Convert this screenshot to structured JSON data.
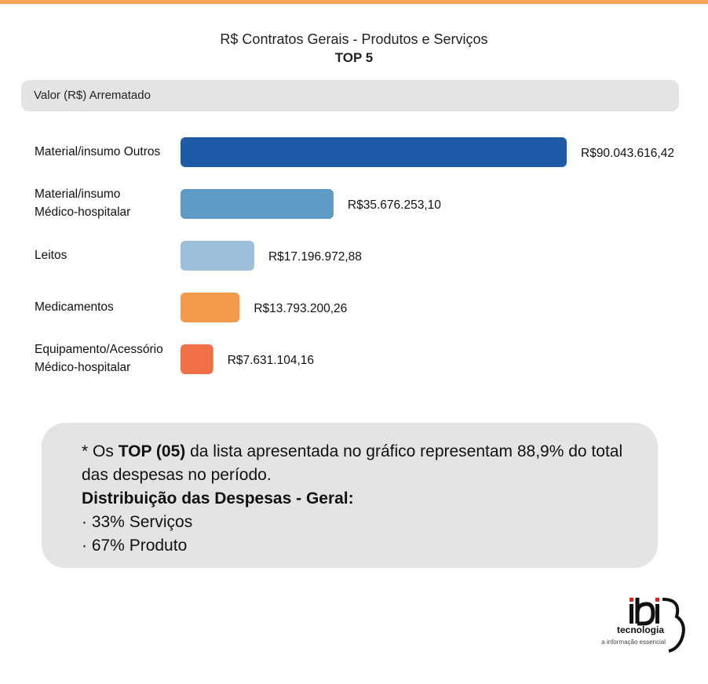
{
  "header": {
    "title": "R$ Contratos Gerais - Produtos e Serviços",
    "subtitle": "TOP 5",
    "accent_color": "#f5a65b"
  },
  "legend": {
    "label": "Valor (R$) Arrematado"
  },
  "chart_data": {
    "type": "bar",
    "orientation": "horizontal",
    "title": "R$ Contratos Gerais - Produtos e Serviços",
    "subtitle": "TOP 5",
    "xlabel": "",
    "ylabel": "",
    "grid": false,
    "legend": "top",
    "series": [
      {
        "name": "Valor (R$) Arrematado",
        "categories": [
          [
            "Material/insumo Outros"
          ],
          [
            "Material/insumo",
            "Médico-hospitalar"
          ],
          [
            "Leitos"
          ],
          [
            "Medicamentos"
          ],
          [
            "Equipamento/Acessório",
            "Médico-hospitalar"
          ]
        ],
        "values": [
          90043616.42,
          35676253.1,
          17196972.88,
          13793200.26,
          7631104.16
        ],
        "labels": [
          "R$90.043.616,42",
          "R$35.676.253,10",
          "R$17.196.972,88",
          "R$13.793.200,26",
          "R$7.631.104,16"
        ],
        "colors": [
          "#1f5aa6",
          "#5e9ac4",
          "#9cc0db",
          "#f39b4a",
          "#ef7044"
        ]
      }
    ]
  },
  "note": {
    "line1_prefix": "* Os ",
    "line1_bold": "TOP (05)",
    "line1_suffix": " da lista apresentada no gráfico representam 88,9% do total das despesas no período.",
    "heading": "Distribuição das Despesas - Geral:",
    "items": [
      "· 33% Serviços",
      "· 67% Produto"
    ]
  },
  "logo": {
    "text": "tecnologia",
    "tagline": "a informação essencial",
    "dot_color": "#e2231a"
  }
}
